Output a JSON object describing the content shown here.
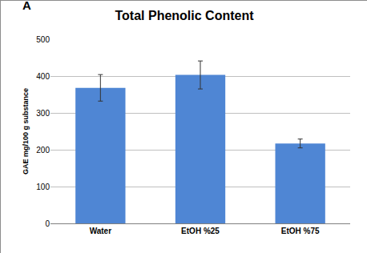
{
  "chart_data": {
    "type": "bar",
    "title": "Total Phenolic Content",
    "y_label": "GAE mg/100 g substance",
    "annotations": [
      "A"
    ],
    "categories": [
      "Water",
      "EtOH %25",
      "EtOH %75"
    ],
    "values": [
      368,
      403,
      217
    ],
    "errors": [
      36,
      38,
      12
    ],
    "color": "#4f86d4",
    "ylim": [
      0,
      500
    ],
    "yticks": [
      0,
      100,
      200,
      300,
      400,
      500
    ],
    "grid": true
  }
}
